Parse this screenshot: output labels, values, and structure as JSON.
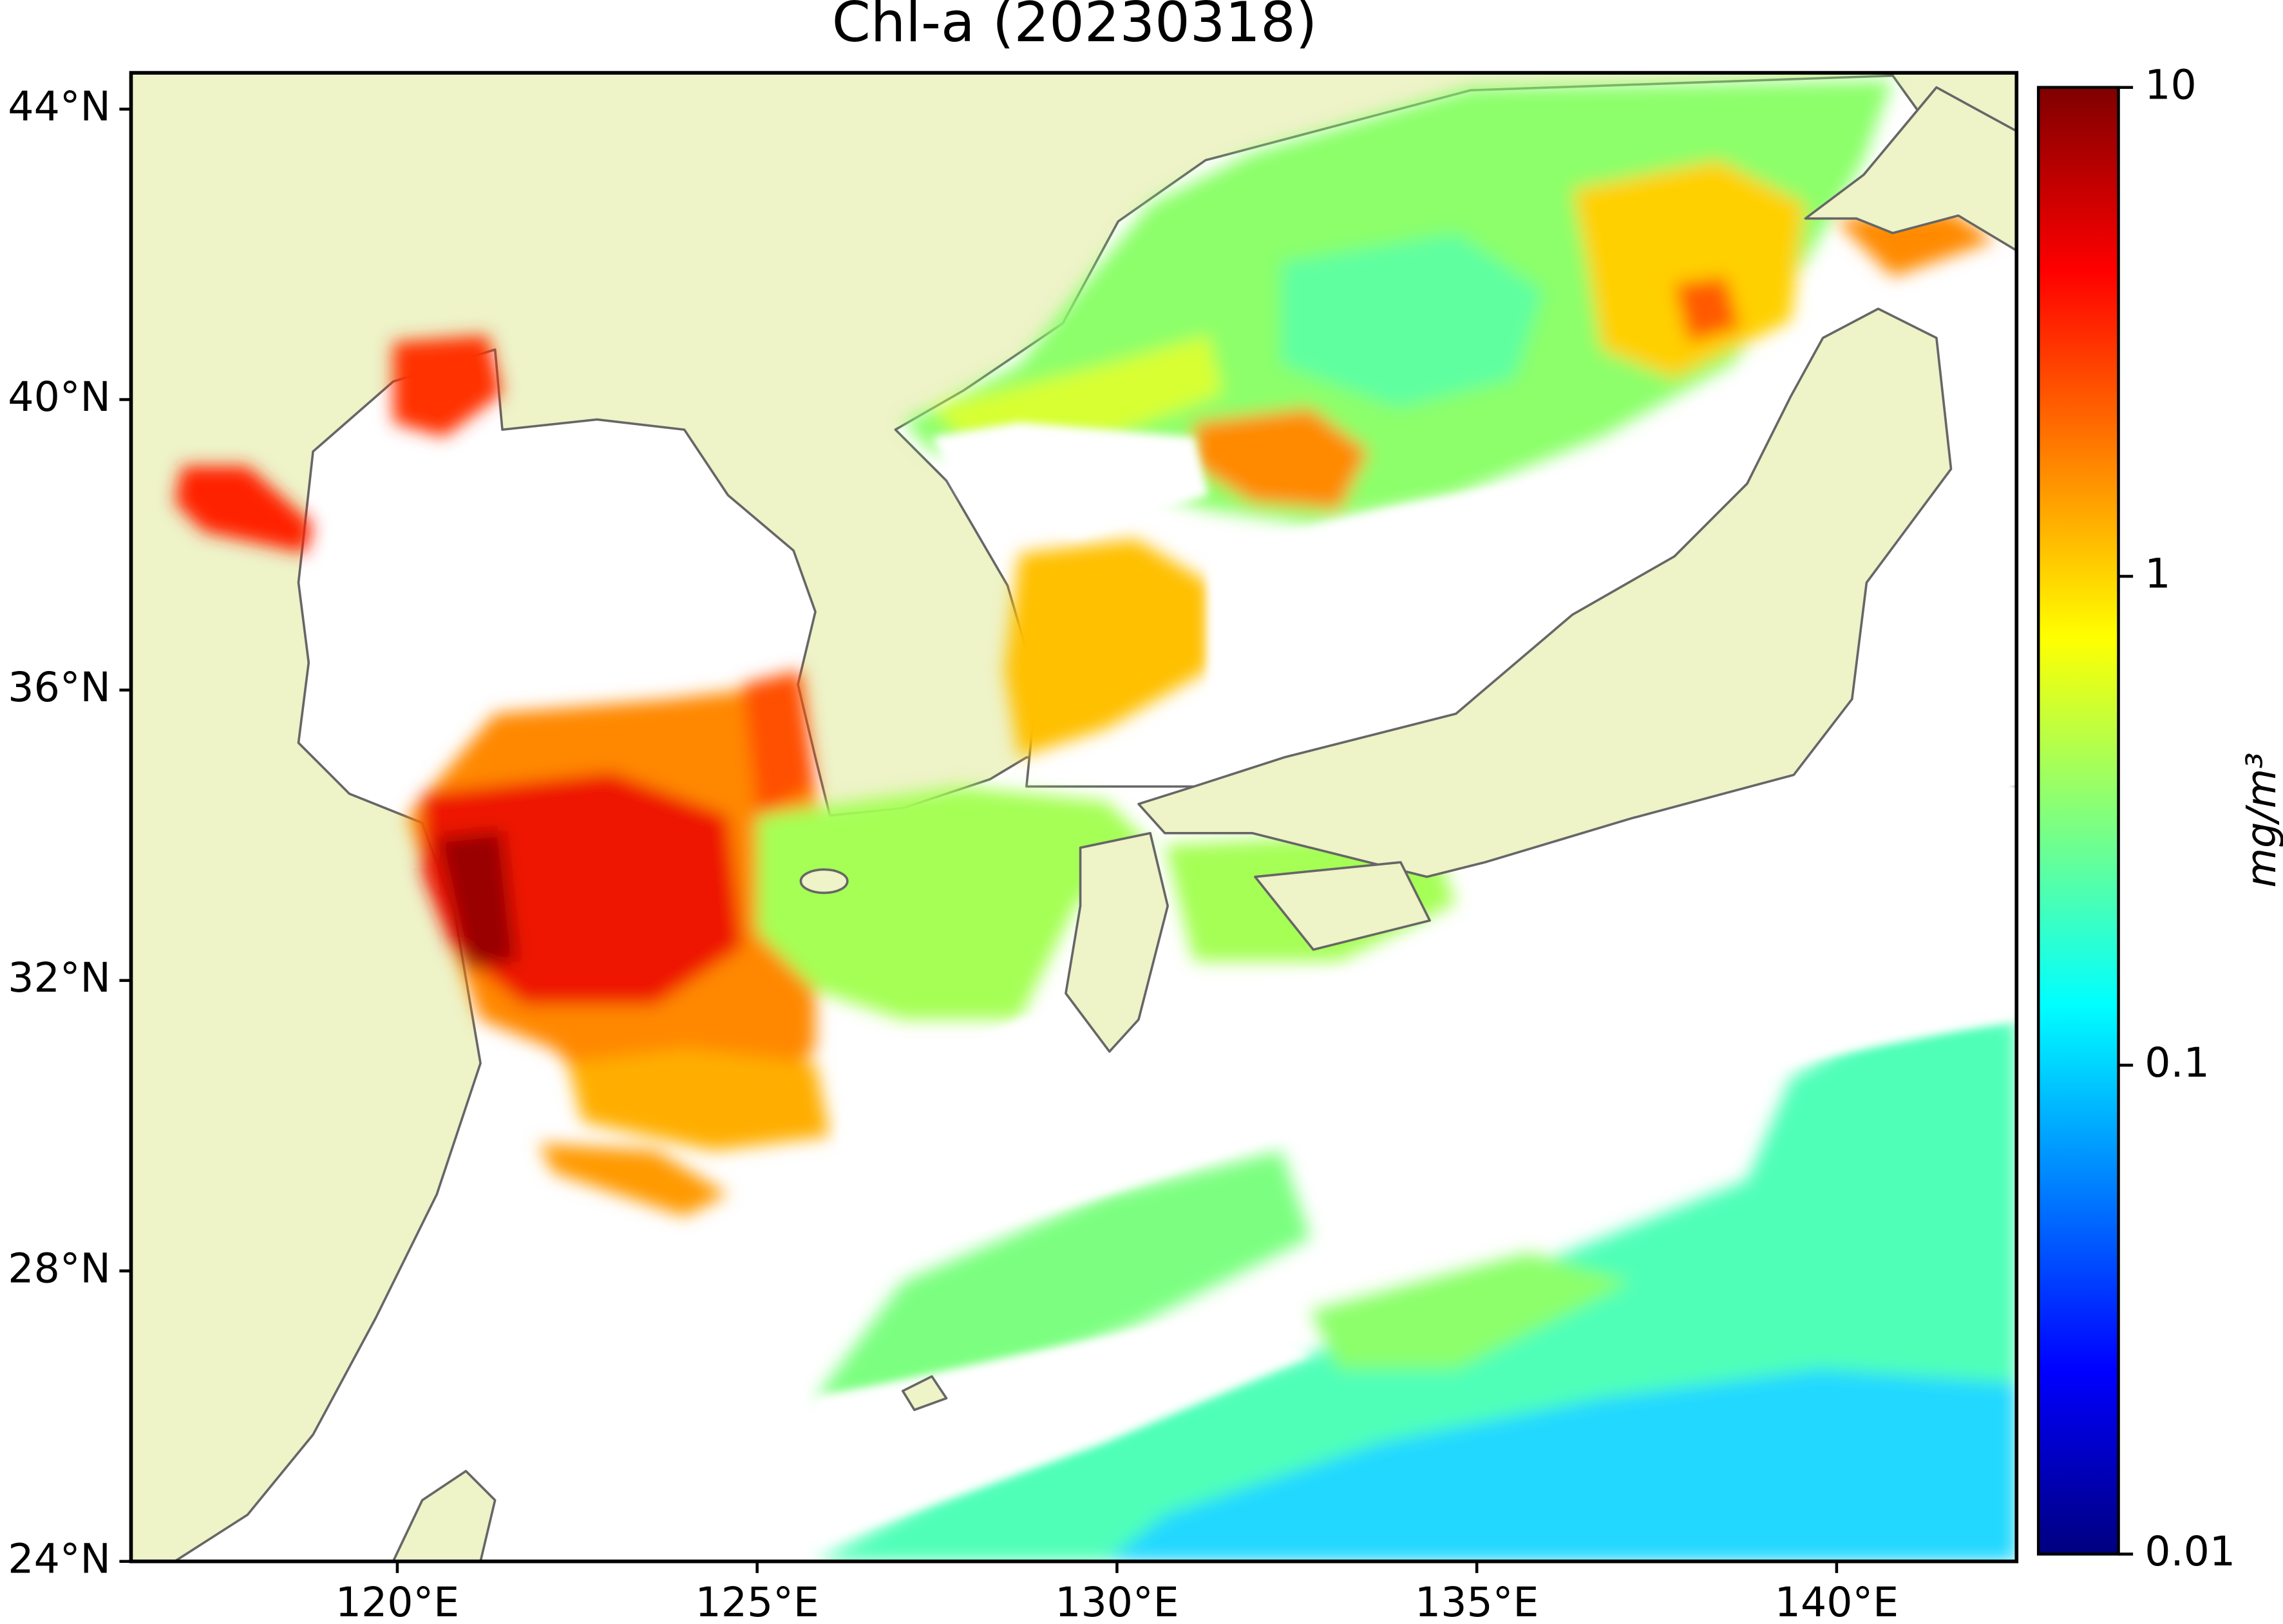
{
  "chart_data": {
    "type": "map",
    "title": "Chl-a (20230318)",
    "xlim": [
      116.3,
      142.5
    ],
    "ylim": [
      24,
      44.5
    ],
    "xticks": [
      {
        "value": 120,
        "label": "120°E"
      },
      {
        "value": 125,
        "label": "125°E"
      },
      {
        "value": 130,
        "label": "130°E"
      },
      {
        "value": 135,
        "label": "135°E"
      },
      {
        "value": 140,
        "label": "140°E"
      }
    ],
    "yticks": [
      {
        "value": 24,
        "label": "24°N"
      },
      {
        "value": 28,
        "label": "28°N"
      },
      {
        "value": 32,
        "label": "32°N"
      },
      {
        "value": 36,
        "label": "36°N"
      },
      {
        "value": 40,
        "label": "40°N"
      },
      {
        "value": 44,
        "label": "44°N"
      }
    ],
    "colorbar": {
      "label": "mg/m³",
      "scale": "log",
      "lim": [
        0.01,
        10
      ],
      "ticks": [
        0.01,
        0.1,
        1,
        10
      ],
      "colors": [
        "#00007f",
        "#0000ff",
        "#007fff",
        "#00ffff",
        "#7fff7f",
        "#ffff00",
        "#ff7f00",
        "#ff0000",
        "#7f0000"
      ]
    }
  }
}
